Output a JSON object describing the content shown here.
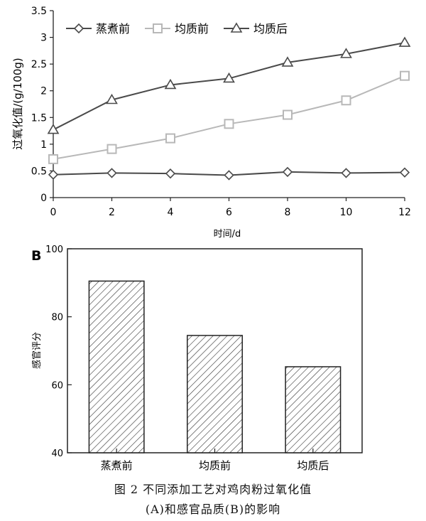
{
  "chart_data": [
    {
      "type": "line",
      "x": [
        0,
        2,
        4,
        6,
        8,
        10,
        12
      ],
      "series": [
        {
          "name": "蒸煮前",
          "values": [
            0.43,
            0.46,
            0.45,
            0.42,
            0.48,
            0.46,
            0.47
          ],
          "marker": "diamond",
          "color": "#4a4a4a"
        },
        {
          "name": "均质前",
          "values": [
            0.72,
            0.91,
            1.11,
            1.38,
            1.55,
            1.82,
            2.28
          ],
          "marker": "square",
          "color": "#b8b8b8"
        },
        {
          "name": "均质后",
          "values": [
            1.27,
            1.83,
            2.11,
            2.23,
            2.53,
            2.69,
            2.9
          ],
          "marker": "triangle",
          "color": "#4a4a4a"
        }
      ],
      "xlabel": "时间/d",
      "ylabel": "过氧化值/(g/100g)",
      "xlim": [
        0,
        12
      ],
      "ylim": [
        0,
        3.5
      ],
      "xticks": [
        "0",
        "2",
        "4",
        "6",
        "8",
        "10",
        "12"
      ],
      "yticks": [
        "0",
        "0.5",
        "1",
        "1.5",
        "2",
        "2.5",
        "3",
        "3.5"
      ],
      "legend_position": "top-left",
      "grid": false
    },
    {
      "type": "bar",
      "panel_label": "B",
      "categories": [
        "蒸煮前",
        "均质前",
        "均质后"
      ],
      "values": [
        90.5,
        74.5,
        65.3
      ],
      "ylabel": "感官评分",
      "ylim": [
        40,
        100
      ],
      "yticks": [
        "40",
        "60",
        "80",
        "100"
      ],
      "bar_pattern": "diagonal-hatch",
      "grid": false
    }
  ],
  "caption": {
    "line1": "图 2   不同添加工艺对鸡肉粉过氧化值",
    "line2": "(A)和感官品质(B)的影响"
  }
}
